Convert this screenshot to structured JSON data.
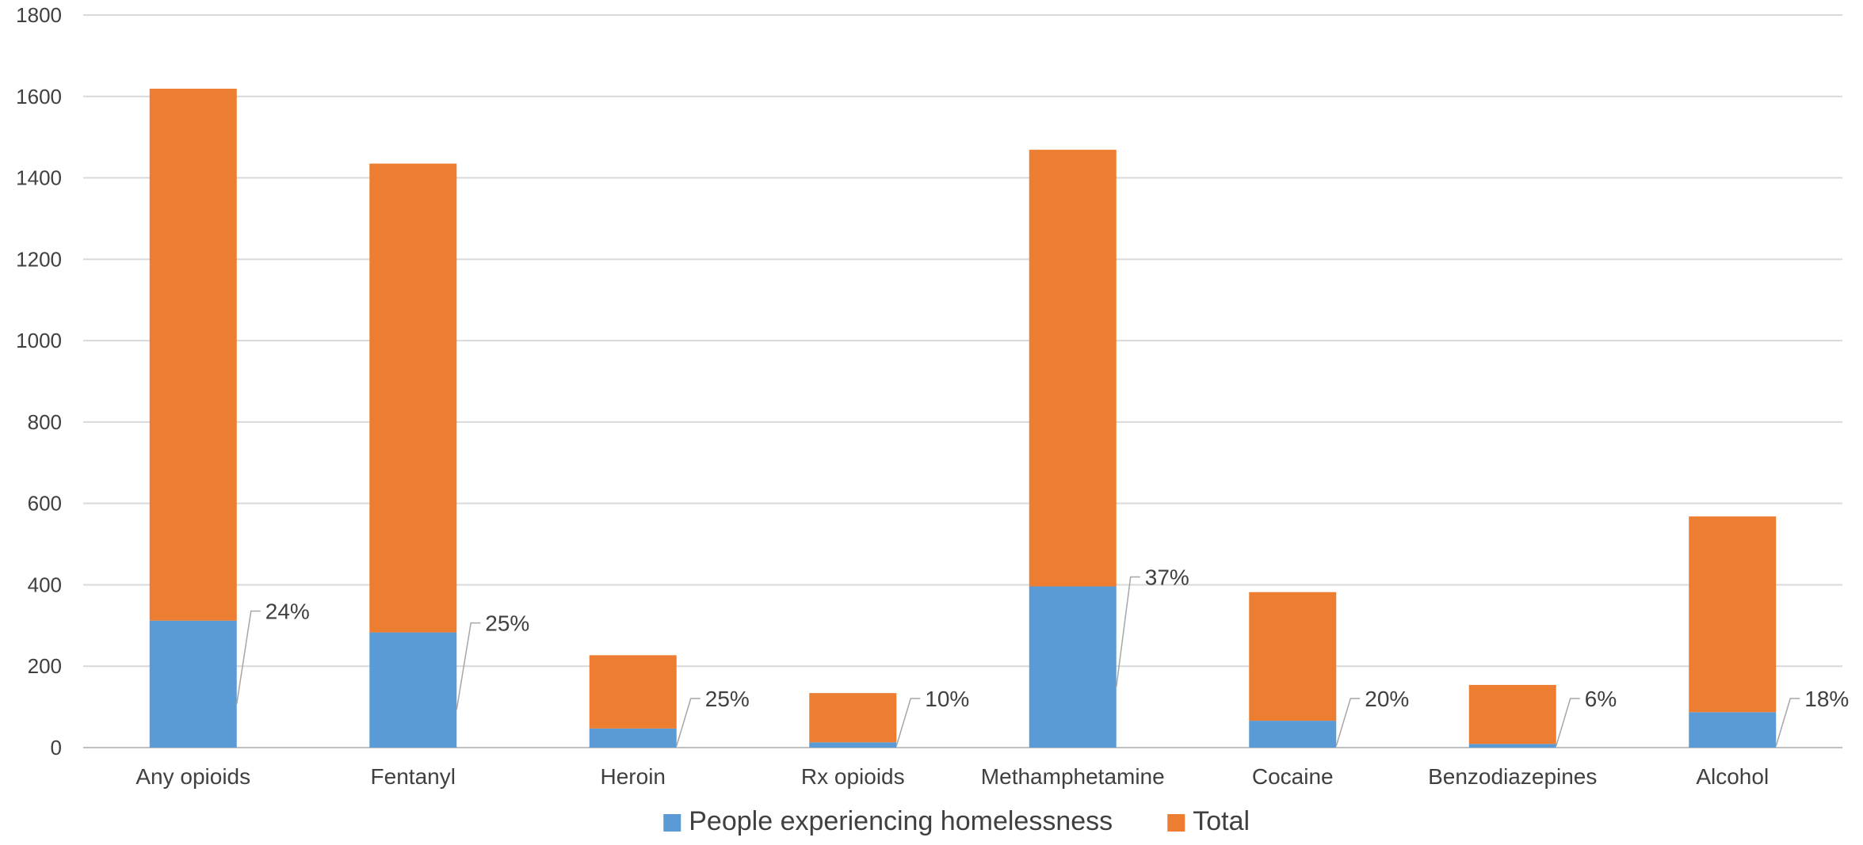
{
  "chart_data": {
    "type": "bar",
    "stacked": true,
    "categories": [
      "Any opioids",
      "Fentanyl",
      "Heroin",
      "Rx opioids",
      "Methamphetamine",
      "Cocaine",
      "Benzodiazepines",
      "Alcohol"
    ],
    "series": [
      {
        "name": "People experiencing homelessness",
        "color": "#5B9BD5",
        "values": [
          312,
          283,
          47,
          13,
          396,
          66,
          9,
          87
        ]
      },
      {
        "name": "Total",
        "color": "#ED7D31",
        "values": [
          1307,
          1152,
          180,
          121,
          1073,
          316,
          145,
          481
        ]
      }
    ],
    "data_labels": [
      "24%",
      "25%",
      "25%",
      "10%",
      "37%",
      "20%",
      "6%",
      "18%"
    ],
    "ylim": [
      0,
      1800
    ],
    "yticks": [
      0,
      200,
      400,
      600,
      800,
      1000,
      1200,
      1400,
      1600,
      1800
    ],
    "grid": true,
    "legend_position": "bottom",
    "title": "",
    "xlabel": "",
    "ylabel": ""
  }
}
